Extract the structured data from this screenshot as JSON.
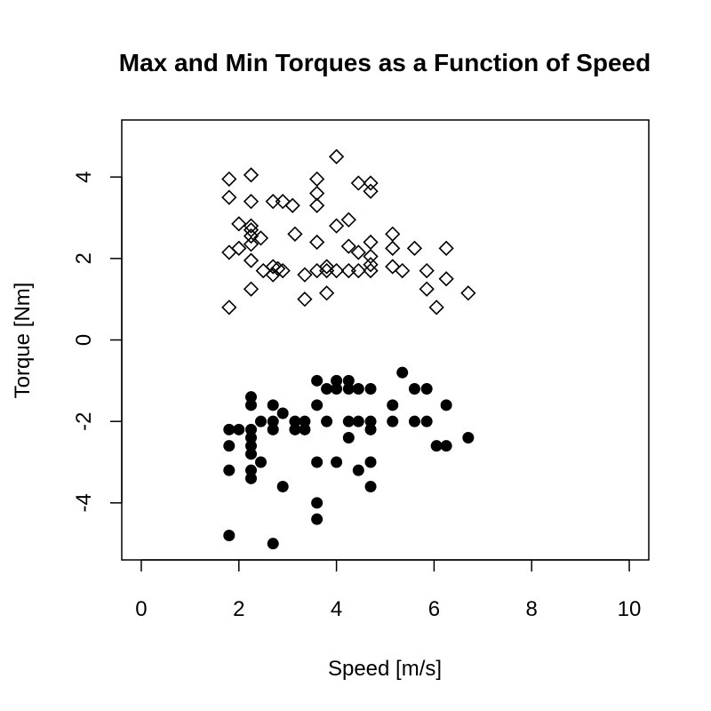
{
  "chart_data": {
    "type": "scatter",
    "title": "Max and Min Torques as a Function of Speed",
    "xlabel": "Speed [m/s]",
    "ylabel": "Torque [Nm]",
    "xlim": [
      -0.4,
      10.4
    ],
    "ylim": [
      -5.4,
      5.4
    ],
    "x_ticks": [
      0,
      2,
      4,
      6,
      8,
      10
    ],
    "y_ticks": [
      -4,
      -2,
      0,
      2,
      4
    ],
    "grid": false,
    "series": [
      {
        "marker": "open-diamond",
        "color": "#000000",
        "points": [
          [
            1.8,
            3.95
          ],
          [
            1.8,
            3.5
          ],
          [
            1.8,
            2.15
          ],
          [
            1.8,
            0.8
          ],
          [
            2.0,
            2.85
          ],
          [
            2.0,
            2.25
          ],
          [
            2.25,
            4.05
          ],
          [
            2.25,
            3.4
          ],
          [
            2.25,
            2.8
          ],
          [
            2.25,
            2.7
          ],
          [
            2.25,
            2.55
          ],
          [
            2.25,
            2.35
          ],
          [
            2.25,
            1.95
          ],
          [
            2.25,
            1.25
          ],
          [
            2.45,
            2.5
          ],
          [
            2.5,
            1.7
          ],
          [
            2.7,
            3.4
          ],
          [
            2.7,
            1.8
          ],
          [
            2.7,
            1.6
          ],
          [
            2.8,
            1.75
          ],
          [
            2.9,
            3.4
          ],
          [
            2.9,
            1.7
          ],
          [
            3.1,
            3.3
          ],
          [
            3.15,
            2.6
          ],
          [
            3.35,
            1.6
          ],
          [
            3.35,
            1.0
          ],
          [
            3.6,
            3.95
          ],
          [
            3.6,
            3.6
          ],
          [
            3.6,
            3.3
          ],
          [
            3.6,
            2.4
          ],
          [
            3.6,
            1.7
          ],
          [
            3.8,
            1.8
          ],
          [
            3.8,
            1.7
          ],
          [
            3.8,
            1.15
          ],
          [
            4.0,
            4.5
          ],
          [
            4.0,
            2.8
          ],
          [
            4.0,
            1.7
          ],
          [
            4.25,
            2.95
          ],
          [
            4.25,
            2.3
          ],
          [
            4.25,
            1.7
          ],
          [
            4.45,
            3.85
          ],
          [
            4.45,
            2.15
          ],
          [
            4.45,
            1.7
          ],
          [
            4.7,
            3.85
          ],
          [
            4.7,
            3.65
          ],
          [
            4.7,
            2.4
          ],
          [
            4.7,
            2.05
          ],
          [
            4.7,
            1.85
          ],
          [
            4.7,
            1.7
          ],
          [
            5.15,
            2.6
          ],
          [
            5.15,
            2.25
          ],
          [
            5.15,
            1.8
          ],
          [
            5.35,
            1.7
          ],
          [
            5.6,
            2.25
          ],
          [
            5.85,
            1.7
          ],
          [
            5.85,
            1.25
          ],
          [
            6.05,
            0.8
          ],
          [
            6.25,
            2.25
          ],
          [
            6.25,
            1.5
          ],
          [
            6.7,
            1.15
          ]
        ]
      },
      {
        "marker": "filled-circle",
        "color": "#000000",
        "points": [
          [
            1.8,
            -2.2
          ],
          [
            1.8,
            -2.6
          ],
          [
            1.8,
            -3.2
          ],
          [
            1.8,
            -4.8
          ],
          [
            2.0,
            -2.2
          ],
          [
            2.25,
            -1.4
          ],
          [
            2.25,
            -1.6
          ],
          [
            2.25,
            -2.2
          ],
          [
            2.25,
            -2.4
          ],
          [
            2.25,
            -2.6
          ],
          [
            2.25,
            -2.8
          ],
          [
            2.25,
            -3.2
          ],
          [
            2.25,
            -3.4
          ],
          [
            2.45,
            -2.0
          ],
          [
            2.45,
            -3.0
          ],
          [
            2.7,
            -1.6
          ],
          [
            2.7,
            -2.0
          ],
          [
            2.7,
            -2.2
          ],
          [
            2.7,
            -5.0
          ],
          [
            2.9,
            -1.8
          ],
          [
            2.9,
            -3.6
          ],
          [
            3.15,
            -2.0
          ],
          [
            3.15,
            -2.2
          ],
          [
            3.35,
            -2.0
          ],
          [
            3.35,
            -2.2
          ],
          [
            3.6,
            -1.0
          ],
          [
            3.6,
            -1.6
          ],
          [
            3.6,
            -3.0
          ],
          [
            3.6,
            -4.0
          ],
          [
            3.6,
            -4.4
          ],
          [
            3.8,
            -1.2
          ],
          [
            3.8,
            -2.0
          ],
          [
            4.0,
            -1.0
          ],
          [
            4.0,
            -1.2
          ],
          [
            4.0,
            -3.0
          ],
          [
            4.25,
            -1.0
          ],
          [
            4.25,
            -1.2
          ],
          [
            4.25,
            -2.0
          ],
          [
            4.25,
            -2.4
          ],
          [
            4.45,
            -1.2
          ],
          [
            4.45,
            -2.0
          ],
          [
            4.45,
            -3.2
          ],
          [
            4.7,
            -1.2
          ],
          [
            4.7,
            -2.0
          ],
          [
            4.7,
            -2.2
          ],
          [
            4.7,
            -3.0
          ],
          [
            4.7,
            -3.6
          ],
          [
            5.15,
            -1.6
          ],
          [
            5.15,
            -2.0
          ],
          [
            5.35,
            -0.8
          ],
          [
            5.6,
            -1.2
          ],
          [
            5.6,
            -2.0
          ],
          [
            5.85,
            -1.2
          ],
          [
            5.85,
            -2.0
          ],
          [
            6.05,
            -2.6
          ],
          [
            6.25,
            -1.6
          ],
          [
            6.25,
            -2.6
          ],
          [
            6.7,
            -2.4
          ]
        ]
      }
    ]
  }
}
